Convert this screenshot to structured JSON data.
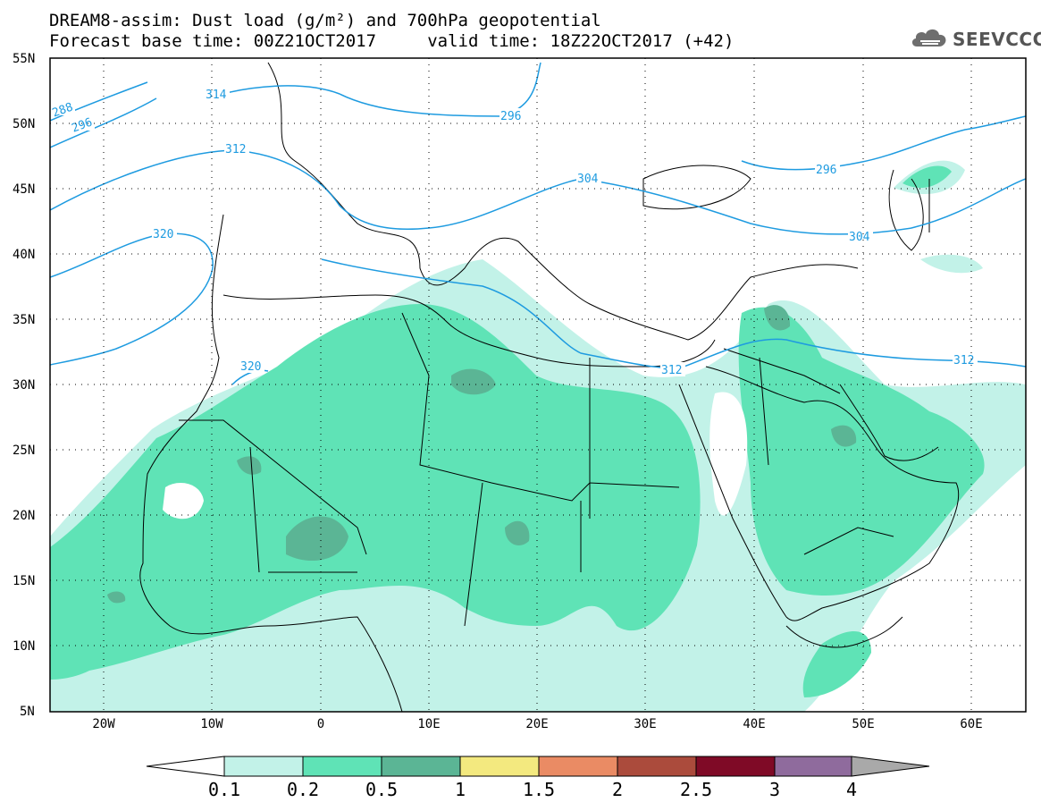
{
  "header": {
    "title_line1": "DREAM8-assim: Dust load (g/m²) and 700hPa geopotential",
    "title_line2": "Forecast base time: 00Z21OCT2017     valid time: 18Z22OCT2017 (+42)"
  },
  "logo": {
    "text": "SEEVCCC",
    "icon": "cloud-icon"
  },
  "map": {
    "lat_labels": [
      "55N",
      "50N",
      "45N",
      "40N",
      "35N",
      "30N",
      "25N",
      "20N",
      "15N",
      "10N",
      "5N"
    ],
    "lon_labels": [
      "20W",
      "10W",
      "0",
      "10E",
      "20E",
      "30E",
      "40E",
      "50E",
      "60E"
    ],
    "contour_labels": [
      "288",
      "296",
      "312",
      "320",
      "314",
      "296",
      "304",
      "320",
      "312",
      "296",
      "304",
      "312"
    ],
    "colors": {
      "contour": "#1e9be0",
      "frame": "#000000",
      "border": "#000000"
    }
  },
  "colorbar": {
    "labels": [
      "0.1",
      "0.2",
      "0.5",
      "1",
      "1.5",
      "2",
      "2.5",
      "3",
      "4"
    ],
    "colors": [
      "#c2f2e8",
      "#5fe3b6",
      "#5bb595",
      "#f3e97f",
      "#ea8b64",
      "#ab4b3c",
      "#7f0a26",
      "#8f6b9d",
      "#a9a9a9"
    ],
    "under_color": "#ffffff"
  }
}
